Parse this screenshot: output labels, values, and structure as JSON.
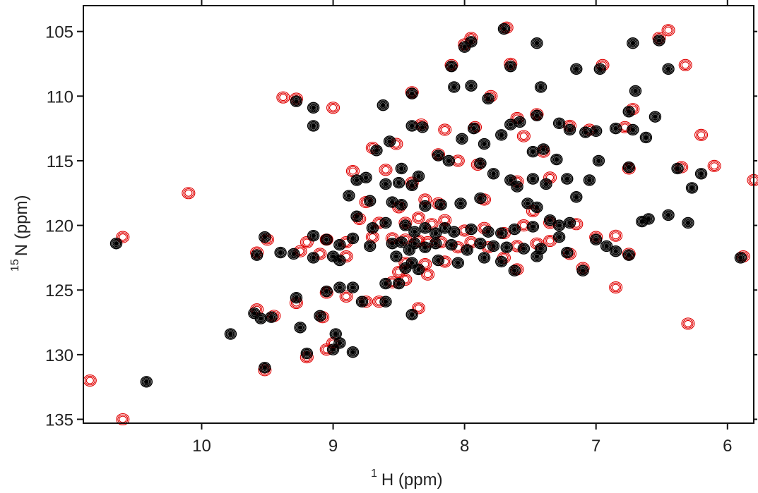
{
  "chart_data": {
    "type": "scatter",
    "title": "",
    "xlabel": {
      "superscript": "1",
      "main": "H  (ppm)"
    },
    "ylabel": {
      "superscript": "15",
      "main": "N  (ppm)"
    },
    "xlim": [
      10.9,
      5.8
    ],
    "ylim": [
      103.0,
      135.3
    ],
    "x_reversed": true,
    "y_reversed": true,
    "x_ticks": [
      10,
      9,
      8,
      7,
      6
    ],
    "y_ticks": [
      105,
      110,
      115,
      120,
      125,
      130,
      135
    ],
    "grid": false,
    "colors": {
      "series_black": "#000000",
      "series_red": "#e00000",
      "axis": "#111111"
    },
    "series": [
      {
        "color_key": "series_black",
        "points": [
          [
            7.7,
            104.8
          ],
          [
            7.95,
            105.8
          ],
          [
            8.0,
            106.2
          ],
          [
            7.45,
            105.9
          ],
          [
            6.72,
            105.9
          ],
          [
            6.52,
            105.7
          ],
          [
            8.1,
            107.7
          ],
          [
            7.65,
            107.7
          ],
          [
            6.97,
            107.9
          ],
          [
            7.15,
            107.9
          ],
          [
            6.45,
            107.9
          ],
          [
            8.08,
            109.3
          ],
          [
            7.42,
            109.3
          ],
          [
            7.95,
            109.2
          ],
          [
            6.7,
            109.6
          ],
          [
            9.28,
            110.4
          ],
          [
            9.15,
            110.9
          ],
          [
            8.4,
            109.8
          ],
          [
            8.62,
            110.7
          ],
          [
            7.82,
            110.2
          ],
          [
            7.58,
            112.0
          ],
          [
            7.28,
            112.1
          ],
          [
            7.45,
            111.5
          ],
          [
            6.55,
            111.6
          ],
          [
            6.75,
            111.2
          ],
          [
            7.08,
            112.8
          ],
          [
            7.0,
            112.7
          ],
          [
            6.85,
            112.5
          ],
          [
            6.72,
            112.6
          ],
          [
            9.15,
            112.3
          ],
          [
            8.4,
            112.3
          ],
          [
            8.32,
            112.4
          ],
          [
            7.93,
            112.5
          ],
          [
            8.02,
            113.3
          ],
          [
            7.65,
            112.2
          ],
          [
            7.72,
            113.0
          ],
          [
            7.2,
            112.6
          ],
          [
            6.62,
            113.2
          ],
          [
            8.57,
            113.5
          ],
          [
            8.67,
            114.2
          ],
          [
            8.48,
            115.6
          ],
          [
            8.2,
            114.6
          ],
          [
            8.12,
            115.0
          ],
          [
            7.88,
            115.2
          ],
          [
            7.78,
            116.0
          ],
          [
            7.48,
            114.3
          ],
          [
            7.4,
            114.1
          ],
          [
            7.3,
            114.9
          ],
          [
            7.85,
            113.7
          ],
          [
            6.98,
            115.0
          ],
          [
            6.75,
            115.5
          ],
          [
            6.38,
            115.6
          ],
          [
            8.75,
            116.3
          ],
          [
            8.82,
            116.5
          ],
          [
            8.6,
            116.8
          ],
          [
            8.5,
            116.7
          ],
          [
            8.4,
            116.9
          ],
          [
            8.35,
            116.2
          ],
          [
            7.6,
            117.0
          ],
          [
            7.65,
            116.5
          ],
          [
            7.48,
            116.4
          ],
          [
            7.38,
            116.8
          ],
          [
            7.22,
            116.4
          ],
          [
            7.05,
            116.5
          ],
          [
            6.2,
            116.0
          ],
          [
            6.27,
            117.1
          ],
          [
            8.88,
            117.7
          ],
          [
            8.72,
            118.1
          ],
          [
            8.55,
            118.2
          ],
          [
            8.48,
            118.4
          ],
          [
            8.3,
            118.5
          ],
          [
            8.18,
            118.4
          ],
          [
            8.03,
            118.3
          ],
          [
            7.88,
            117.9
          ],
          [
            7.52,
            118.3
          ],
          [
            7.45,
            118.6
          ],
          [
            7.15,
            117.8
          ],
          [
            8.82,
            119.3
          ],
          [
            8.7,
            120.2
          ],
          [
            8.6,
            119.8
          ],
          [
            8.45,
            120.0
          ],
          [
            8.38,
            120.5
          ],
          [
            8.3,
            120.2
          ],
          [
            8.22,
            120.6
          ],
          [
            8.15,
            120.2
          ],
          [
            8.08,
            120.5
          ],
          [
            7.95,
            120.3
          ],
          [
            7.82,
            120.5
          ],
          [
            7.72,
            120.6
          ],
          [
            7.62,
            120.3
          ],
          [
            7.48,
            120.1
          ],
          [
            7.35,
            119.6
          ],
          [
            7.28,
            120.0
          ],
          [
            7.2,
            119.8
          ],
          [
            6.65,
            119.7
          ],
          [
            6.6,
            119.5
          ],
          [
            6.45,
            119.2
          ],
          [
            6.3,
            119.8
          ],
          [
            9.52,
            120.9
          ],
          [
            9.15,
            120.8
          ],
          [
            9.05,
            121.1
          ],
          [
            8.95,
            121.5
          ],
          [
            8.85,
            121.0
          ],
          [
            8.72,
            121.6
          ],
          [
            8.55,
            121.4
          ],
          [
            8.48,
            121.3
          ],
          [
            8.42,
            121.9
          ],
          [
            8.38,
            121.4
          ],
          [
            8.3,
            121.7
          ],
          [
            8.22,
            121.4
          ],
          [
            8.1,
            121.5
          ],
          [
            7.98,
            121.9
          ],
          [
            7.88,
            121.4
          ],
          [
            7.78,
            121.6
          ],
          [
            7.68,
            121.7
          ],
          [
            7.55,
            121.8
          ],
          [
            7.42,
            121.8
          ],
          [
            7.28,
            120.9
          ],
          [
            7.0,
            121.1
          ],
          [
            6.92,
            121.6
          ],
          [
            10.65,
            121.4
          ],
          [
            9.58,
            122.3
          ],
          [
            9.4,
            122.1
          ],
          [
            9.3,
            122.2
          ],
          [
            9.15,
            122.5
          ],
          [
            9.0,
            122.4
          ],
          [
            8.95,
            122.7
          ],
          [
            8.52,
            122.4
          ],
          [
            8.4,
            122.9
          ],
          [
            8.2,
            122.7
          ],
          [
            8.05,
            122.9
          ],
          [
            7.85,
            122.5
          ],
          [
            7.72,
            122.8
          ],
          [
            7.45,
            122.4
          ],
          [
            7.22,
            122.1
          ],
          [
            6.85,
            122.0
          ],
          [
            6.75,
            122.3
          ],
          [
            5.9,
            122.5
          ],
          [
            8.45,
            123.3
          ],
          [
            8.35,
            123.4
          ],
          [
            7.62,
            123.5
          ],
          [
            7.1,
            123.5
          ],
          [
            8.95,
            124.8
          ],
          [
            8.85,
            124.8
          ],
          [
            8.6,
            124.5
          ],
          [
            8.5,
            124.5
          ],
          [
            9.05,
            125.1
          ],
          [
            9.28,
            125.6
          ],
          [
            8.78,
            125.9
          ],
          [
            8.6,
            125.9
          ],
          [
            8.4,
            126.9
          ],
          [
            9.1,
            127.0
          ],
          [
            9.6,
            126.8
          ],
          [
            9.55,
            127.2
          ],
          [
            9.47,
            127.1
          ],
          [
            9.25,
            127.9
          ],
          [
            9.78,
            128.4
          ],
          [
            8.98,
            128.4
          ],
          [
            8.95,
            129.1
          ],
          [
            9.0,
            129.6
          ],
          [
            9.2,
            129.9
          ],
          [
            8.85,
            129.8
          ],
          [
            9.52,
            131.0
          ],
          [
            10.42,
            132.1
          ]
        ]
      },
      {
        "color_key": "series_red",
        "points": [
          [
            7.68,
            104.7
          ],
          [
            7.95,
            105.5
          ],
          [
            8.0,
            106.0
          ],
          [
            6.52,
            105.5
          ],
          [
            6.45,
            104.9
          ],
          [
            8.1,
            107.6
          ],
          [
            7.65,
            107.5
          ],
          [
            6.95,
            107.6
          ],
          [
            6.32,
            107.6
          ],
          [
            9.38,
            110.1
          ],
          [
            9.28,
            110.2
          ],
          [
            9.0,
            110.9
          ],
          [
            8.4,
            109.7
          ],
          [
            7.8,
            110.0
          ],
          [
            7.6,
            111.7
          ],
          [
            7.45,
            111.4
          ],
          [
            6.72,
            111.0
          ],
          [
            6.78,
            112.4
          ],
          [
            7.05,
            112.6
          ],
          [
            7.2,
            112.3
          ],
          [
            8.33,
            112.2
          ],
          [
            7.92,
            112.4
          ],
          [
            8.15,
            112.6
          ],
          [
            7.55,
            113.1
          ],
          [
            6.2,
            113.0
          ],
          [
            8.52,
            113.7
          ],
          [
            8.7,
            114.0
          ],
          [
            8.2,
            114.5
          ],
          [
            8.05,
            115.0
          ],
          [
            7.9,
            115.3
          ],
          [
            7.4,
            114.3
          ],
          [
            6.75,
            115.6
          ],
          [
            6.1,
            115.4
          ],
          [
            8.85,
            115.8
          ],
          [
            8.6,
            115.7
          ],
          [
            8.4,
            116.7
          ],
          [
            7.6,
            116.6
          ],
          [
            7.35,
            116.3
          ],
          [
            5.8,
            116.5
          ],
          [
            6.35,
            115.5
          ],
          [
            8.75,
            118.2
          ],
          [
            8.5,
            118.6
          ],
          [
            8.3,
            118.0
          ],
          [
            8.2,
            118.3
          ],
          [
            7.85,
            118.0
          ],
          [
            7.48,
            118.9
          ],
          [
            8.8,
            119.5
          ],
          [
            8.65,
            119.8
          ],
          [
            8.45,
            119.8
          ],
          [
            8.35,
            119.4
          ],
          [
            8.25,
            119.9
          ],
          [
            8.15,
            119.6
          ],
          [
            8.0,
            120.4
          ],
          [
            7.85,
            120.2
          ],
          [
            7.7,
            120.6
          ],
          [
            7.55,
            120.0
          ],
          [
            7.35,
            119.8
          ],
          [
            7.15,
            119.9
          ],
          [
            9.5,
            121.1
          ],
          [
            9.2,
            121.3
          ],
          [
            9.05,
            121.1
          ],
          [
            8.9,
            121.3
          ],
          [
            8.7,
            120.9
          ],
          [
            8.55,
            121.0
          ],
          [
            8.45,
            121.1
          ],
          [
            8.35,
            121.2
          ],
          [
            8.28,
            121.3
          ],
          [
            8.18,
            121.3
          ],
          [
            8.05,
            121.7
          ],
          [
            7.95,
            121.3
          ],
          [
            7.82,
            121.7
          ],
          [
            7.6,
            121.6
          ],
          [
            7.45,
            121.4
          ],
          [
            7.35,
            121.2
          ],
          [
            7.0,
            120.9
          ],
          [
            6.85,
            120.8
          ],
          [
            10.6,
            120.9
          ],
          [
            9.58,
            122.1
          ],
          [
            9.25,
            122.0
          ],
          [
            9.1,
            122.2
          ],
          [
            8.9,
            122.4
          ],
          [
            8.45,
            122.9
          ],
          [
            8.3,
            123.0
          ],
          [
            8.15,
            122.8
          ],
          [
            7.7,
            122.5
          ],
          [
            7.2,
            122.2
          ],
          [
            6.75,
            122.2
          ],
          [
            5.88,
            122.4
          ],
          [
            8.5,
            123.6
          ],
          [
            8.28,
            123.8
          ],
          [
            7.6,
            123.4
          ],
          [
            7.1,
            123.3
          ],
          [
            8.55,
            124.4
          ],
          [
            8.45,
            124.2
          ],
          [
            9.05,
            125.2
          ],
          [
            8.9,
            125.5
          ],
          [
            8.65,
            125.9
          ],
          [
            8.35,
            126.4
          ],
          [
            9.58,
            126.5
          ],
          [
            6.85,
            124.8
          ],
          [
            9.28,
            126.0
          ],
          [
            8.75,
            125.9
          ],
          [
            9.08,
            127.1
          ],
          [
            9.45,
            127.0
          ],
          [
            9.0,
            129.1
          ],
          [
            9.05,
            129.6
          ],
          [
            9.2,
            130.2
          ],
          [
            9.52,
            131.2
          ],
          [
            10.85,
            132.0
          ],
          [
            10.6,
            135.0
          ],
          [
            10.1,
            117.5
          ],
          [
            6.3,
            127.6
          ]
        ]
      }
    ]
  }
}
